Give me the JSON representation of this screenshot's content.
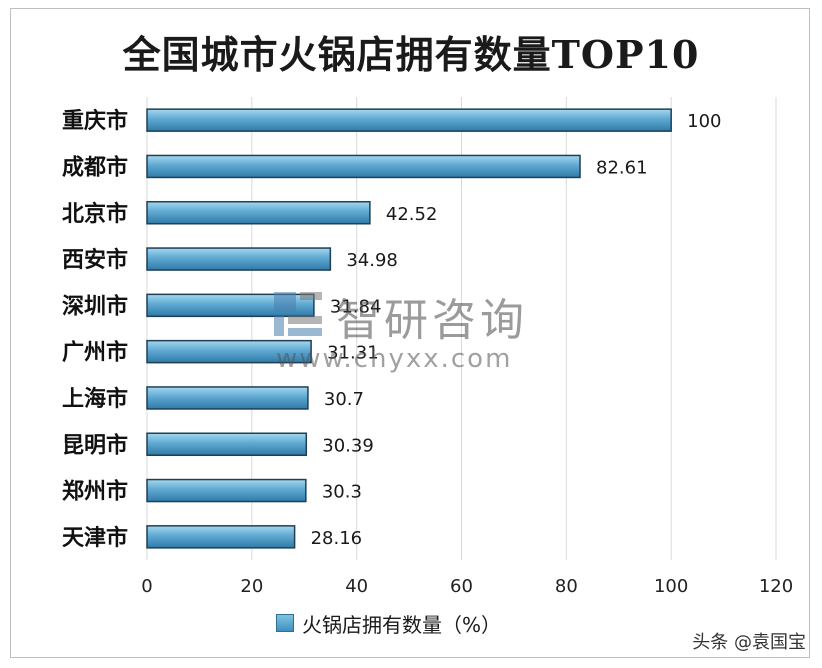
{
  "chart_data": {
    "type": "bar",
    "orientation": "horizontal",
    "title": "全国城市火锅店拥有数量TOP10",
    "categories": [
      "重庆市",
      "成都市",
      "北京市",
      "西安市",
      "深圳市",
      "广州市",
      "上海市",
      "昆明市",
      "郑州市",
      "天津市"
    ],
    "series": [
      {
        "name": "火锅店拥有数量（%）",
        "values": [
          100,
          82.61,
          42.52,
          34.98,
          31.84,
          31.31,
          30.7,
          30.39,
          30.3,
          28.16
        ],
        "value_labels": [
          "100",
          "82.61",
          "42.52",
          "34.98",
          "31.84",
          "31.31",
          "30.7",
          "30.39",
          "30.3",
          "28.16"
        ],
        "color": "#4a9ac6"
      }
    ],
    "xlim": [
      0,
      120
    ],
    "xticks": [
      0,
      20,
      40,
      60,
      80,
      100,
      120
    ],
    "grid": true,
    "legend_position": "bottom"
  },
  "watermark": {
    "name": "智研咨询",
    "url": "www.chyxx.com"
  },
  "credit": "头条 @袁国宝",
  "colors": {
    "bar_light": "#8ccbe6",
    "bar_dark": "#3b86b4",
    "bar_edge": "#1f3f55",
    "grid": "#d9d9d9"
  }
}
